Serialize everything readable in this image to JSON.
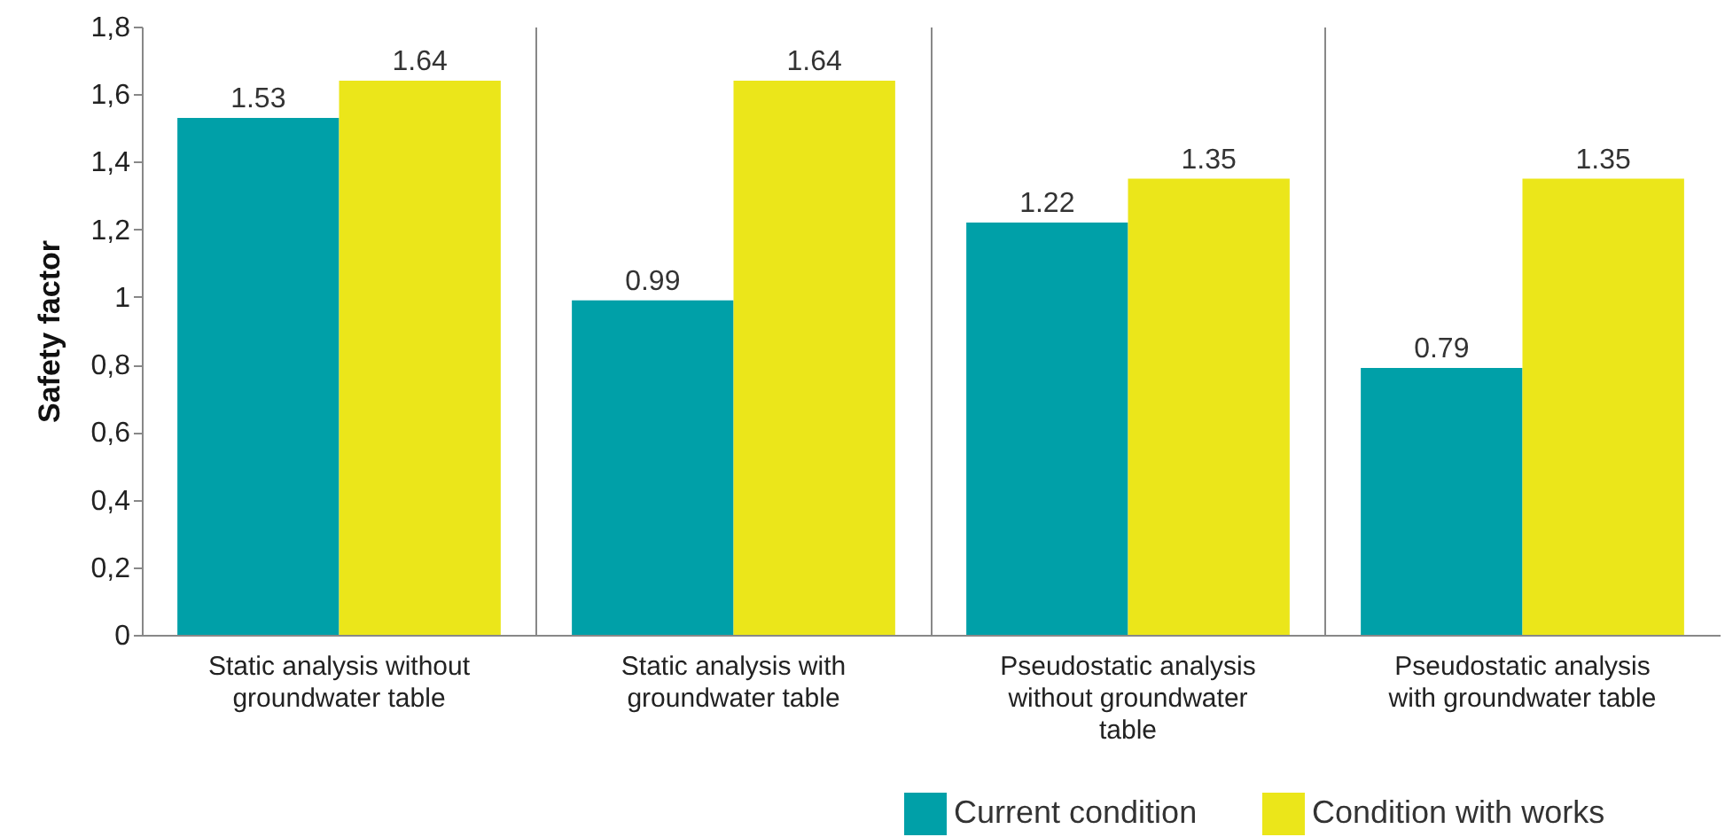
{
  "chart_data": {
    "type": "bar",
    "ylabel": "Safety factor",
    "categories": [
      "Static analysis without groundwater table",
      "Static analysis with groundwater table",
      "Pseudostatic analysis without groundwater table",
      "Pseudostatic analysis with groundwater table"
    ],
    "series": [
      {
        "name": "Current condition",
        "color": "#00a0a8",
        "values": [
          1.53,
          0.99,
          1.22,
          0.79
        ]
      },
      {
        "name": "Condition with works",
        "color": "#ebe61a",
        "values": [
          1.64,
          1.64,
          1.35,
          1.35
        ]
      }
    ],
    "ylim": [
      0,
      1.8
    ],
    "yticks": [
      0,
      {
        "value": 0.2,
        "label": "0,2"
      },
      {
        "value": 0.4,
        "label": "0,4"
      },
      {
        "value": 0.6,
        "label": "0,6"
      },
      {
        "value": 0.8,
        "label": "0,8"
      },
      1,
      {
        "value": 1.2,
        "label": "1,2"
      },
      {
        "value": 1.4,
        "label": "1,4"
      },
      {
        "value": 1.6,
        "label": "1,6"
      },
      {
        "value": 1.8,
        "label": "1,8"
      }
    ],
    "data_labels": true,
    "grid": "x",
    "legend": "bottom right"
  }
}
